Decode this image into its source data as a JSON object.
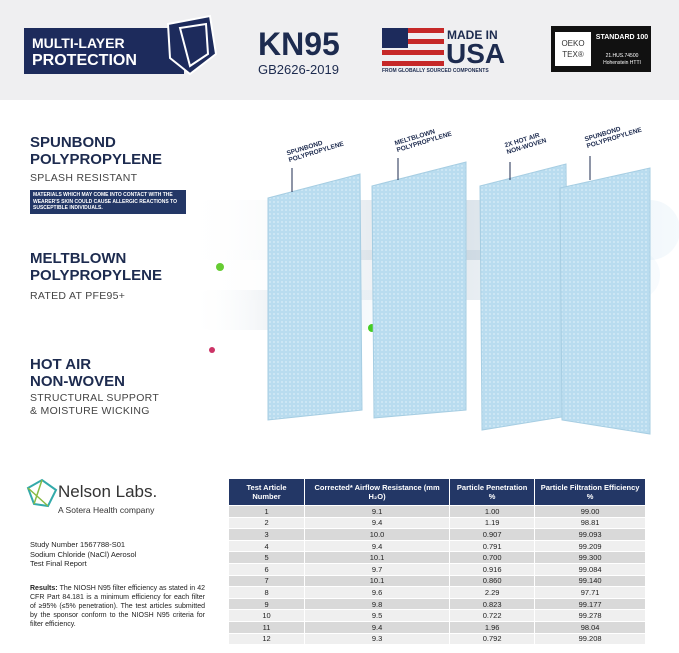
{
  "header": {
    "badge": [
      "MULTI-LAYER",
      "PROTECTION"
    ],
    "standard": {
      "name": "KN95",
      "code": "GB2626-2019"
    },
    "made_in": {
      "line1": "MADE IN",
      "line2": "USA",
      "note": "FROM GLOBALLY SOURCED COMPONENTS"
    },
    "oeko": {
      "logo": [
        "OEKO",
        "TEX®"
      ],
      "standard": "STANDARD 100",
      "number": "21.HUS.74500",
      "institute": "Hohenstein HTTI"
    }
  },
  "layers": [
    {
      "title": [
        "SPUNBOND",
        "POLYPROPYLENE"
      ],
      "subtitle": "SPLASH RESISTANT",
      "note": "MATERIALS WHICH MAY COME INTO CONTACT WITH THE WEARER'S SKIN COULD CAUSE ALLERGIC REACTIONS TO SUSCEPTIBLE INDIVIDUALS."
    },
    {
      "title": [
        "MELTBLOWN",
        "POLYPROPYLENE"
      ],
      "subtitle": "RATED AT PFE95+"
    },
    {
      "title": [
        "HOT AIR",
        "NON-WOVEN"
      ],
      "subtitle": [
        "STRUCTURAL SUPPORT",
        "& MOISTURE WICKING"
      ]
    }
  ],
  "panels": [
    [
      "SPUNBOND",
      "POLYPROPYLENE"
    ],
    [
      "MELTBLOWN",
      "POLYPROPYLENE"
    ],
    [
      "2X HOT AIR",
      "NON-WOVEN"
    ],
    [
      "SPUNBOND",
      "POLYPROPYLENE"
    ]
  ],
  "lab": {
    "name": "Nelson Labs.",
    "tagline": "A Sotera Health company",
    "study": [
      "Study Number 1567788-S01",
      "Sodium Chloride (NaCl) Aerosol",
      "Test Final Report"
    ],
    "results_label": "Results:",
    "results": "The NIOSH N95 filter efficiency as stated in 42 CFR Part 84.181 is a minimum efficiency for each filter of ≥95% (≤5% penetration). The test articles submitted by the sponsor conform to the NIOSH N95 criteria for filter efficiency."
  },
  "table": {
    "columns": [
      "Test Article Number",
      "Corrected* Airflow Resistance (mm H₂O)",
      "Particle Penetration %",
      "Particle Filtration Efficiency %"
    ],
    "rows": [
      [
        "1",
        "9.1",
        "1.00",
        "99.00"
      ],
      [
        "2",
        "9.4",
        "1.19",
        "98.81"
      ],
      [
        "3",
        "10.0",
        "0.907",
        "99.093"
      ],
      [
        "4",
        "9.4",
        "0.791",
        "99.209"
      ],
      [
        "5",
        "10.1",
        "0.700",
        "99.300"
      ],
      [
        "6",
        "9.7",
        "0.916",
        "99.084"
      ],
      [
        "7",
        "10.1",
        "0.860",
        "99.140"
      ],
      [
        "8",
        "9.6",
        "2.29",
        "97.71"
      ],
      [
        "9",
        "9.8",
        "0.823",
        "99.177"
      ],
      [
        "10",
        "9.5",
        "0.722",
        "99.278"
      ],
      [
        "11",
        "9.4",
        "1.96",
        "98.04"
      ],
      [
        "12",
        "9.3",
        "0.792",
        "99.208"
      ]
    ]
  }
}
